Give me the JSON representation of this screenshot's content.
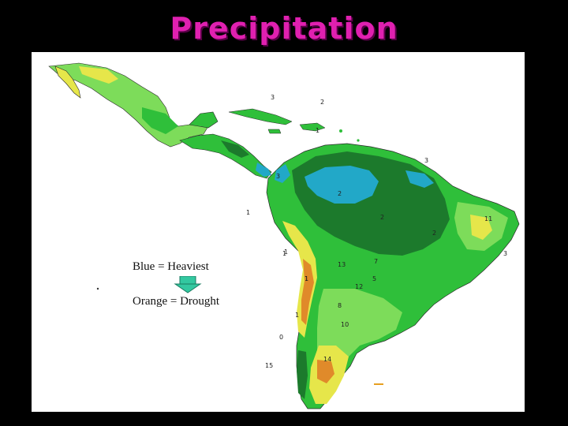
{
  "title": "Precipitation",
  "legend": {
    "heaviest": "Blue = Heaviest",
    "drought": "Orange = Drought"
  },
  "colors": {
    "title": "#e020b0",
    "background": "#000000",
    "heaviest": "#22a8c8",
    "very_wet": "#1c7a2c",
    "wet": "#2fbf3a",
    "moderate": "#7ddc5a",
    "dry": "#e6e64a",
    "drought": "#e08a2a",
    "arrow": "#33c8a0"
  },
  "map": {
    "region_labels": [
      "3",
      "2",
      "1",
      "3",
      "2",
      "3",
      "2",
      "2",
      "1",
      "1",
      "11",
      "3",
      "13",
      "12",
      "7",
      "1",
      "8",
      "10",
      "14",
      "15",
      "0",
      "1",
      "5",
      "1",
      "1"
    ]
  }
}
